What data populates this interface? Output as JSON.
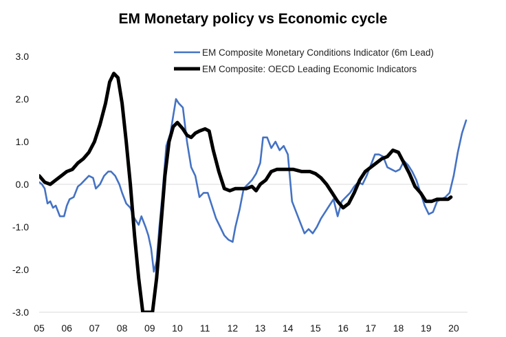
{
  "chart_data": {
    "type": "line",
    "title": "EM Monetary policy vs Economic cycle",
    "xlabel": "",
    "ylabel": "",
    "xlim": [
      2005.0,
      2020.5
    ],
    "ylim": [
      -3.0,
      3.0
    ],
    "yticks": [
      "3.0",
      "2.0",
      "1.0",
      "0.0",
      "-1.0",
      "-2.0",
      "-3.0"
    ],
    "ytick_values": [
      3,
      2,
      1,
      0,
      -1,
      -2,
      -3
    ],
    "xticks": [
      "05",
      "06",
      "07",
      "08",
      "09",
      "10",
      "11",
      "12",
      "13",
      "14",
      "15",
      "16",
      "17",
      "18",
      "19",
      "20"
    ],
    "xtick_values": [
      2005,
      2006,
      2007,
      2008,
      2009,
      2010,
      2011,
      2012,
      2013,
      2014,
      2015,
      2016,
      2017,
      2018,
      2019,
      2020
    ],
    "zero_line": true,
    "legend_position": "top-right",
    "series": [
      {
        "name": "EM Composite Monetary Conditions Indicator (6m Lead)",
        "color": "#4472C4",
        "x": [
          2005.0,
          2005.1,
          2005.2,
          2005.3,
          2005.4,
          2005.5,
          2005.6,
          2005.75,
          2005.9,
          2006.0,
          2006.1,
          2006.25,
          2006.4,
          2006.5,
          2006.65,
          2006.8,
          2006.95,
          2007.05,
          2007.2,
          2007.35,
          2007.5,
          2007.6,
          2007.75,
          2007.9,
          2008.0,
          2008.15,
          2008.3,
          2008.45,
          2008.6,
          2008.7,
          2008.85,
          2008.95,
          2009.05,
          2009.15,
          2009.25,
          2009.35,
          2009.45,
          2009.6,
          2009.75,
          2009.85,
          2009.95,
          2010.05,
          2010.2,
          2010.35,
          2010.5,
          2010.65,
          2010.8,
          2010.95,
          2011.1,
          2011.25,
          2011.4,
          2011.55,
          2011.7,
          2011.85,
          2012.0,
          2012.1,
          2012.25,
          2012.4,
          2012.55,
          2012.7,
          2012.85,
          2013.0,
          2013.1,
          2013.25,
          2013.4,
          2013.55,
          2013.7,
          2013.85,
          2014.0,
          2014.15,
          2014.3,
          2014.45,
          2014.6,
          2014.75,
          2014.9,
          2015.05,
          2015.2,
          2015.35,
          2015.5,
          2015.65,
          2015.8,
          2015.95,
          2016.1,
          2016.25,
          2016.4,
          2016.55,
          2016.7,
          2016.85,
          2017.0,
          2017.15,
          2017.3,
          2017.45,
          2017.6,
          2017.75,
          2017.9,
          2018.05,
          2018.2,
          2018.35,
          2018.5,
          2018.65,
          2018.8,
          2018.95,
          2019.1,
          2019.25,
          2019.4,
          2019.55,
          2019.7,
          2019.85,
          2020.0,
          2020.15,
          2020.3,
          2020.45
        ],
        "y": [
          0.05,
          0.0,
          -0.1,
          -0.45,
          -0.4,
          -0.55,
          -0.5,
          -0.75,
          -0.75,
          -0.5,
          -0.35,
          -0.3,
          -0.05,
          0.0,
          0.1,
          0.2,
          0.15,
          -0.1,
          0.0,
          0.2,
          0.3,
          0.3,
          0.2,
          0.0,
          -0.2,
          -0.45,
          -0.55,
          -0.8,
          -0.95,
          -0.75,
          -1.0,
          -1.2,
          -1.5,
          -2.05,
          -1.8,
          -1.0,
          -0.3,
          0.9,
          1.2,
          1.6,
          2.0,
          1.9,
          1.8,
          1.0,
          0.4,
          0.2,
          -0.3,
          -0.2,
          -0.2,
          -0.5,
          -0.8,
          -1.0,
          -1.2,
          -1.3,
          -1.35,
          -1.0,
          -0.6,
          -0.1,
          0.0,
          0.1,
          0.25,
          0.5,
          1.1,
          1.1,
          0.85,
          1.0,
          0.8,
          0.9,
          0.7,
          -0.4,
          -0.65,
          -0.9,
          -1.15,
          -1.05,
          -1.15,
          -1.0,
          -0.8,
          -0.65,
          -0.5,
          -0.35,
          -0.75,
          -0.4,
          -0.3,
          -0.2,
          -0.05,
          0.05,
          0.0,
          0.2,
          0.45,
          0.7,
          0.7,
          0.65,
          0.4,
          0.35,
          0.3,
          0.35,
          0.55,
          0.45,
          0.3,
          0.1,
          -0.2,
          -0.5,
          -0.7,
          -0.65,
          -0.4,
          -0.35,
          -0.3,
          -0.2,
          0.2,
          0.75,
          1.2,
          1.5
        ]
      },
      {
        "name": "EM Composite: OECD Leading Economic Indicators",
        "color": "#000000",
        "x": [
          2005.0,
          2005.2,
          2005.4,
          2005.6,
          2005.8,
          2006.0,
          2006.2,
          2006.4,
          2006.6,
          2006.8,
          2007.0,
          2007.2,
          2007.4,
          2007.55,
          2007.7,
          2007.85,
          2008.0,
          2008.15,
          2008.3,
          2008.45,
          2008.6,
          2008.75,
          2009.1,
          2009.25,
          2009.4,
          2009.55,
          2009.7,
          2009.85,
          2010.0,
          2010.2,
          2010.35,
          2010.5,
          2010.65,
          2010.8,
          2011.0,
          2011.15,
          2011.3,
          2011.5,
          2011.7,
          2011.9,
          2012.1,
          2012.3,
          2012.5,
          2012.7,
          2012.85,
          2013.0,
          2013.2,
          2013.4,
          2013.6,
          2013.8,
          2014.0,
          2014.2,
          2014.5,
          2014.8,
          2015.0,
          2015.2,
          2015.4,
          2015.6,
          2015.8,
          2016.0,
          2016.2,
          2016.4,
          2016.6,
          2016.8,
          2017.0,
          2017.2,
          2017.4,
          2017.6,
          2017.8,
          2018.0,
          2018.2,
          2018.4,
          2018.6,
          2018.8,
          2019.0,
          2019.2,
          2019.4,
          2019.6,
          2019.8,
          2019.9
        ],
        "y": [
          0.2,
          0.05,
          0.0,
          0.1,
          0.2,
          0.3,
          0.35,
          0.5,
          0.6,
          0.75,
          1.0,
          1.4,
          1.9,
          2.4,
          2.6,
          2.5,
          1.9,
          1.0,
          0.0,
          -1.2,
          -2.2,
          -3.0,
          -3.0,
          -2.2,
          -1.0,
          0.2,
          1.0,
          1.35,
          1.45,
          1.3,
          1.15,
          1.1,
          1.2,
          1.25,
          1.3,
          1.25,
          0.8,
          0.3,
          -0.1,
          -0.15,
          -0.1,
          -0.1,
          -0.1,
          -0.05,
          -0.15,
          0.0,
          0.1,
          0.3,
          0.35,
          0.35,
          0.35,
          0.35,
          0.3,
          0.3,
          0.25,
          0.15,
          0.0,
          -0.2,
          -0.4,
          -0.55,
          -0.45,
          -0.2,
          0.1,
          0.3,
          0.4,
          0.5,
          0.6,
          0.65,
          0.8,
          0.75,
          0.5,
          0.25,
          -0.05,
          -0.2,
          -0.4,
          -0.4,
          -0.35,
          -0.35,
          -0.35,
          -0.3
        ]
      }
    ]
  }
}
